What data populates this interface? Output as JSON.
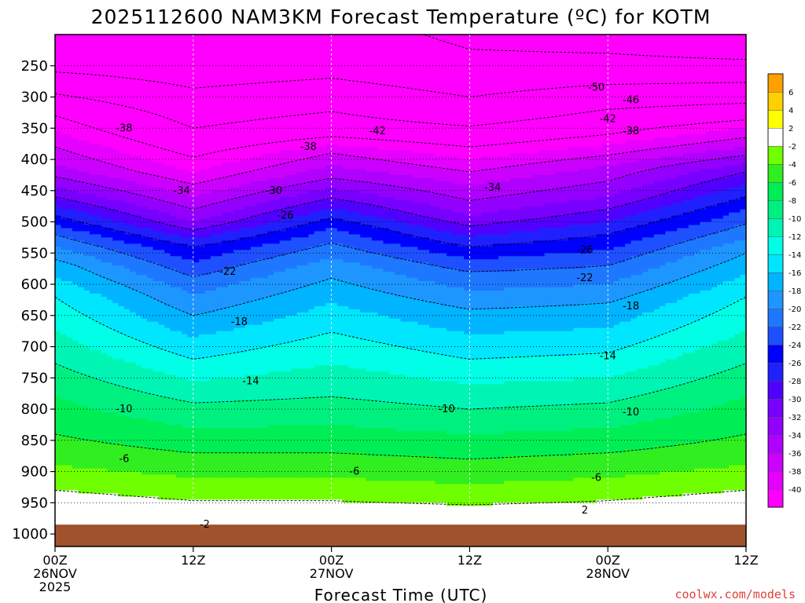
{
  "chart_data": {
    "type": "heatmap",
    "title": "2025112600 NAM3KM Forecast Temperature (ºC) for KOTM",
    "xlabel": "Forecast Time (UTC)",
    "ylabel": "",
    "x_ticks": [
      {
        "hour": 0,
        "lines": [
          "00Z",
          "26NOV",
          "2025"
        ]
      },
      {
        "hour": 12,
        "lines": [
          "12Z"
        ]
      },
      {
        "hour": 24,
        "lines": [
          "00Z",
          "27NOV"
        ]
      },
      {
        "hour": 36,
        "lines": [
          "12Z"
        ]
      },
      {
        "hour": 48,
        "lines": [
          "00Z",
          "28NOV"
        ]
      },
      {
        "hour": 60,
        "lines": [
          "12Z"
        ]
      }
    ],
    "x_range_hours": [
      0,
      60
    ],
    "y_ticks_hpa": [
      250,
      300,
      350,
      400,
      450,
      500,
      550,
      600,
      650,
      700,
      750,
      800,
      850,
      900,
      950,
      1000
    ],
    "y_range_hpa": [
      200,
      1020
    ],
    "surface_pressure_hpa": 985,
    "grid": true,
    "colorbar": {
      "placement": "right",
      "levels": [
        -40,
        -38,
        -36,
        -34,
        -32,
        -30,
        -28,
        -26,
        -24,
        -22,
        -20,
        -18,
        -16,
        -14,
        -12,
        -10,
        -8,
        -6,
        -4,
        -2,
        2,
        4,
        6
      ],
      "colors": [
        "#ff00ff",
        "#e600ff",
        "#cc00ff",
        "#b000ff",
        "#9400ff",
        "#7800ff",
        "#5000ff",
        "#2020ff",
        "#0000ff",
        "#1e50ff",
        "#1e78ff",
        "#1e96ff",
        "#00b4ff",
        "#00e6ff",
        "#00ffe6",
        "#00f5b4",
        "#00f080",
        "#00ee55",
        "#30ee20",
        "#70ff00",
        "#ffffff",
        "#ffff00",
        "#ffd000",
        "#ffa000"
      ]
    },
    "temperature_profiles": [
      {
        "hour": 0,
        "levels_hpa": [
          200,
          260,
          330,
          380,
          420,
          460,
          520,
          570,
          620,
          700,
          780,
          870,
          930,
          980
        ],
        "temps_c": [
          -54,
          -50,
          -42,
          -38,
          -35,
          -30,
          -22,
          -17,
          -14,
          -11,
          -8,
          -5,
          -2,
          1
        ]
      },
      {
        "hour": 12,
        "levels_hpa": [
          200,
          270,
          350,
          420,
          460,
          500,
          540,
          600,
          650,
          720,
          790,
          870,
          930,
          980
        ],
        "temps_c": [
          -54,
          -51,
          -46,
          -40,
          -36,
          -32,
          -26,
          -21,
          -18,
          -14,
          -10,
          -6,
          -3,
          0
        ]
      },
      {
        "hour": 24,
        "levels_hpa": [
          200,
          270,
          350,
          390,
          430,
          470,
          510,
          570,
          630,
          700,
          780,
          870,
          930,
          980
        ],
        "temps_c": [
          -52,
          -50,
          -44,
          -38,
          -34,
          -29,
          -24,
          -19,
          -16,
          -13,
          -10,
          -6,
          -3,
          0
        ]
      },
      {
        "hour": 36,
        "levels_hpa": [
          200,
          270,
          330,
          380,
          430,
          490,
          540,
          580,
          640,
          720,
          800,
          880,
          940,
          980
        ],
        "temps_c": [
          -55,
          -52,
          -48,
          -42,
          -37,
          -32,
          -26,
          -22,
          -18,
          -14,
          -10,
          -6,
          -3,
          0
        ]
      },
      {
        "hour": 48,
        "levels_hpa": [
          200,
          260,
          320,
          360,
          410,
          460,
          520,
          570,
          630,
          710,
          790,
          870,
          930,
          980
        ],
        "temps_c": [
          -56,
          -52,
          -46,
          -42,
          -36,
          -32,
          -26,
          -22,
          -18,
          -14,
          -10,
          -6,
          -3,
          0
        ]
      },
      {
        "hour": 60,
        "levels_hpa": [
          200,
          260,
          310,
          350,
          380,
          420,
          480,
          550,
          620,
          700,
          780,
          870,
          930,
          980
        ],
        "temps_c": [
          -58,
          -52,
          -46,
          -40,
          -36,
          -30,
          -24,
          -18,
          -14,
          -11,
          -8,
          -5,
          -2,
          1
        ]
      }
    ],
    "contour_labels": [
      {
        "text": "-38",
        "hour": 6,
        "hpa": 350
      },
      {
        "text": "-34",
        "hour": 11,
        "hpa": 450
      },
      {
        "text": "-30",
        "hour": 19,
        "hpa": 450
      },
      {
        "text": "-26",
        "hour": 20,
        "hpa": 490
      },
      {
        "text": "-38",
        "hour": 22,
        "hpa": 380
      },
      {
        "text": "-42",
        "hour": 28,
        "hpa": 355
      },
      {
        "text": "-22",
        "hour": 15,
        "hpa": 580
      },
      {
        "text": "-18",
        "hour": 16,
        "hpa": 660
      },
      {
        "text": "-14",
        "hour": 17,
        "hpa": 755
      },
      {
        "text": "-10",
        "hour": 6,
        "hpa": 800
      },
      {
        "text": "-6",
        "hour": 6,
        "hpa": 880
      },
      {
        "text": "-2",
        "hour": 13,
        "hpa": 985
      },
      {
        "text": "-6",
        "hour": 26,
        "hpa": 900
      },
      {
        "text": "-10",
        "hour": 34,
        "hpa": 800
      },
      {
        "text": "-34",
        "hour": 38,
        "hpa": 445
      },
      {
        "text": "-50",
        "hour": 47,
        "hpa": 285
      },
      {
        "text": "-46",
        "hour": 50,
        "hpa": 305
      },
      {
        "text": "-42",
        "hour": 48,
        "hpa": 335
      },
      {
        "text": "-38",
        "hour": 50,
        "hpa": 355
      },
      {
        "text": "-26",
        "hour": 46,
        "hpa": 545
      },
      {
        "text": "-22",
        "hour": 46,
        "hpa": 590
      },
      {
        "text": "-18",
        "hour": 50,
        "hpa": 635
      },
      {
        "text": "-14",
        "hour": 48,
        "hpa": 715
      },
      {
        "text": "-10",
        "hour": 50,
        "hpa": 805
      },
      {
        "text": "-6",
        "hour": 47,
        "hpa": 910
      },
      {
        "text": "2",
        "hour": 46,
        "hpa": 962
      }
    ]
  },
  "footer": {
    "credit": "coolwx.com/models"
  }
}
